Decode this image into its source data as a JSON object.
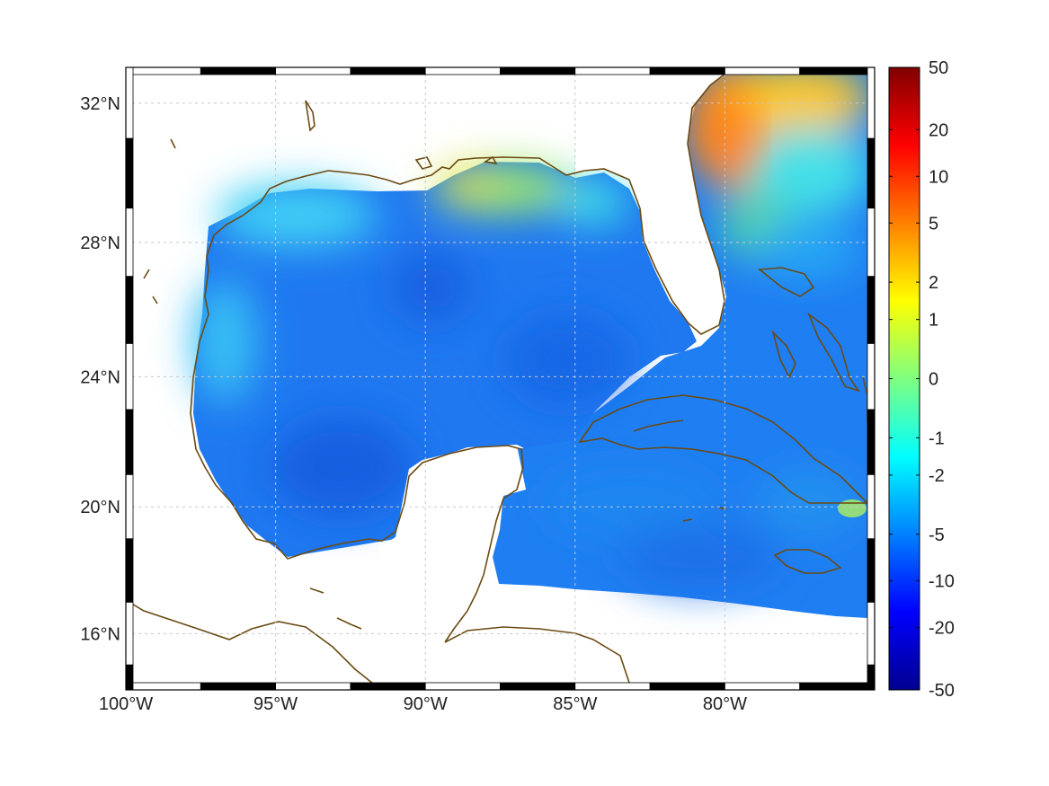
{
  "map": {
    "lon_range": [
      -100,
      -75
    ],
    "lat_range": [
      14.2,
      33
    ],
    "lon_ticks": [
      {
        "lon": -100,
        "label": "100°W"
      },
      {
        "lon": -95,
        "label": "95°W"
      },
      {
        "lon": -90,
        "label": "90°W"
      },
      {
        "lon": -85,
        "label": "85°W"
      },
      {
        "lon": -80,
        "label": "80°W"
      }
    ],
    "lat_ticks": [
      {
        "lat": 32,
        "label": "32°N"
      },
      {
        "lat": 28,
        "label": "28°N"
      },
      {
        "lat": 24,
        "label": "24°N"
      },
      {
        "lat": 20,
        "label": "20°N"
      },
      {
        "lat": 16,
        "label": "16°N"
      }
    ],
    "gridlines": true,
    "coastline_color": "#6b4a12",
    "land_color": "#ffffff",
    "projection": "mercator"
  },
  "colorbar": {
    "placement": "right",
    "colormap": "jet",
    "ticks": [
      "50",
      "20",
      "10",
      "5",
      "2",
      "1",
      "0",
      "-1",
      "-2",
      "-5",
      "-10",
      "-20",
      "-50"
    ],
    "colors": [
      "#00008f",
      "#0000ff",
      "#0080ff",
      "#00ffff",
      "#80ff80",
      "#ffff00",
      "#ff8000",
      "#ff0000",
      "#800000"
    ]
  }
}
